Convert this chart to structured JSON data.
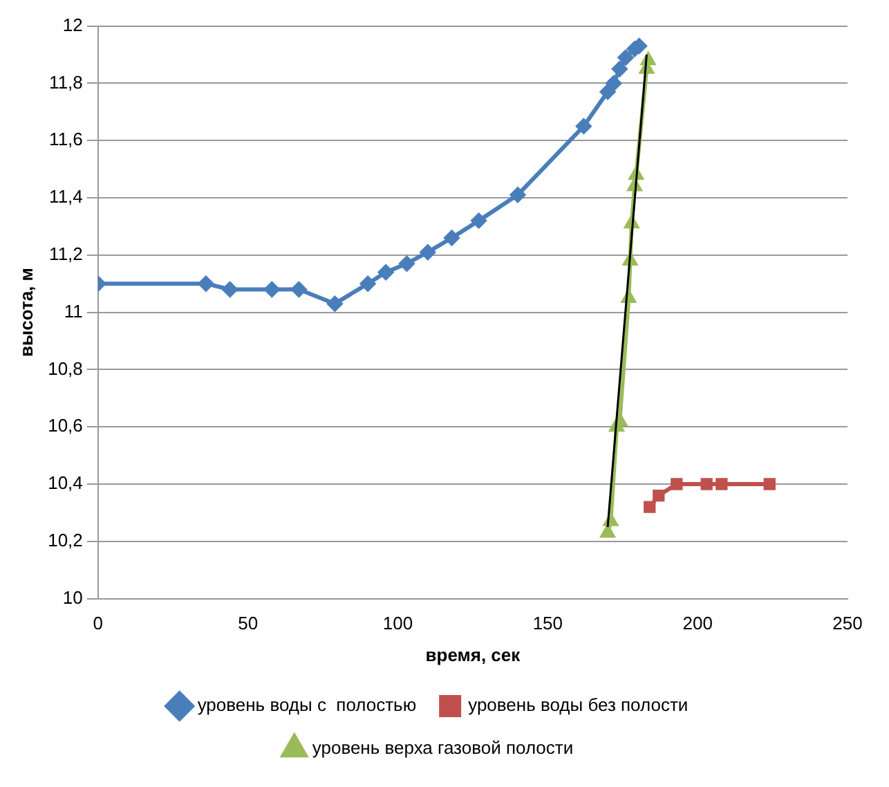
{
  "chart_data": {
    "type": "line",
    "xlabel": "время, сек",
    "ylabel": "высота, м",
    "xlim": [
      0,
      250
    ],
    "xticks": [
      0,
      50,
      100,
      150,
      200,
      250
    ],
    "ylim": [
      10,
      12
    ],
    "yticks": [
      10,
      {
        "value": 10.2,
        "label": "10,2"
      },
      {
        "value": 10.4,
        "label": "10,4"
      },
      {
        "value": 10.6,
        "label": "10,6"
      },
      {
        "value": 10.8,
        "label": "10,8"
      },
      11,
      {
        "value": 11.2,
        "label": "11,2"
      },
      {
        "value": 11.4,
        "label": "11,4"
      },
      {
        "value": 11.6,
        "label": "11,6"
      },
      {
        "value": 11.8,
        "label": "11,8"
      },
      12
    ],
    "grid": "y",
    "legend": "bottom",
    "series": [
      {
        "name": "уровень воды с  полостью",
        "color": "#4a7ebb",
        "marker": "diamond",
        "x": [
          0,
          36,
          44,
          58,
          67,
          79,
          90,
          96,
          103,
          110,
          118,
          127,
          140,
          162,
          170,
          172,
          174,
          176,
          179,
          180.5
        ],
        "values": [
          11.1,
          11.1,
          11.08,
          11.08,
          11.08,
          11.03,
          11.1,
          11.14,
          11.17,
          11.21,
          11.26,
          11.32,
          11.41,
          11.65,
          11.77,
          11.8,
          11.85,
          11.89,
          11.92,
          11.93
        ]
      },
      {
        "name": "уровень воды без полости",
        "color": "#c0504d",
        "marker": "square",
        "x": [
          184,
          187,
          193,
          203,
          208,
          224
        ],
        "values": [
          10.32,
          10.36,
          10.4,
          10.4,
          10.4,
          10.4
        ]
      },
      {
        "name": "уровень верха газовой полости",
        "color": "#9bbb59",
        "marker": "triangle",
        "x": [
          170,
          171,
          173,
          174,
          177,
          177.5,
          178,
          179,
          179.5,
          183,
          183.5
        ],
        "values": [
          10.23,
          10.27,
          10.6,
          10.62,
          11.05,
          11.18,
          11.31,
          11.44,
          11.48,
          11.85,
          11.88
        ]
      },
      {
        "type": "line",
        "color": "#000000",
        "marker": "none",
        "x": [
          170,
          183
        ],
        "values": [
          10.25,
          11.9
        ]
      }
    ]
  }
}
